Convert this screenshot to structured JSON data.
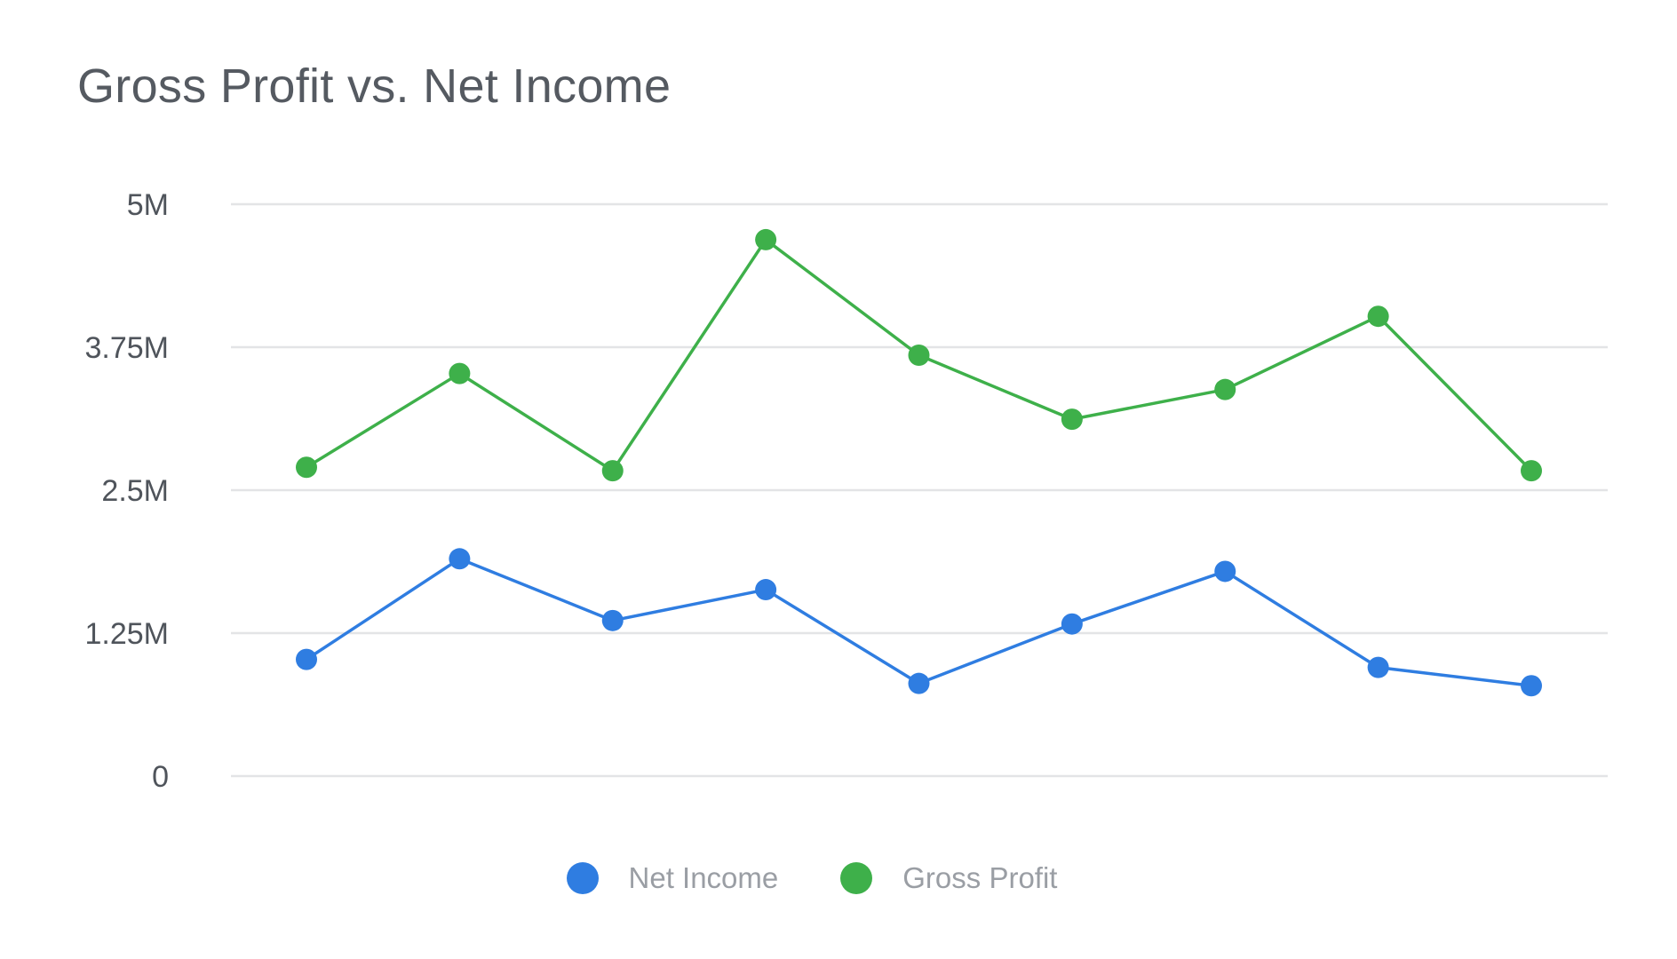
{
  "title": "Gross Profit vs. Net Income",
  "chart_data": {
    "type": "line",
    "title": "Gross Profit vs. Net Income",
    "xlabel": "",
    "ylabel": "",
    "x": [
      1,
      2,
      3,
      4,
      5,
      6,
      7,
      8,
      9
    ],
    "ylim": [
      0,
      5000000
    ],
    "yticks": [
      {
        "value": 0,
        "label": "0"
      },
      {
        "value": 1250000,
        "label": "1.25M"
      },
      {
        "value": 2500000,
        "label": "2.5M"
      },
      {
        "value": 3750000,
        "label": "3.75M"
      },
      {
        "value": 5000000,
        "label": "5M"
      }
    ],
    "grid": true,
    "legend": "bottom-center",
    "series": [
      {
        "name": "Net Income",
        "color": "#2f7de1",
        "values": [
          1020000,
          1900000,
          1360000,
          1630000,
          810000,
          1330000,
          1790000,
          950000,
          790000
        ]
      },
      {
        "name": "Gross Profit",
        "color": "#3eb04a",
        "values": [
          2700000,
          3520000,
          2670000,
          4690000,
          3680000,
          3120000,
          3380000,
          4020000,
          2670000
        ]
      }
    ]
  },
  "legend": {
    "items": [
      {
        "label": "Net Income",
        "color": "#2f7de1"
      },
      {
        "label": "Gross Profit",
        "color": "#3eb04a"
      }
    ]
  }
}
